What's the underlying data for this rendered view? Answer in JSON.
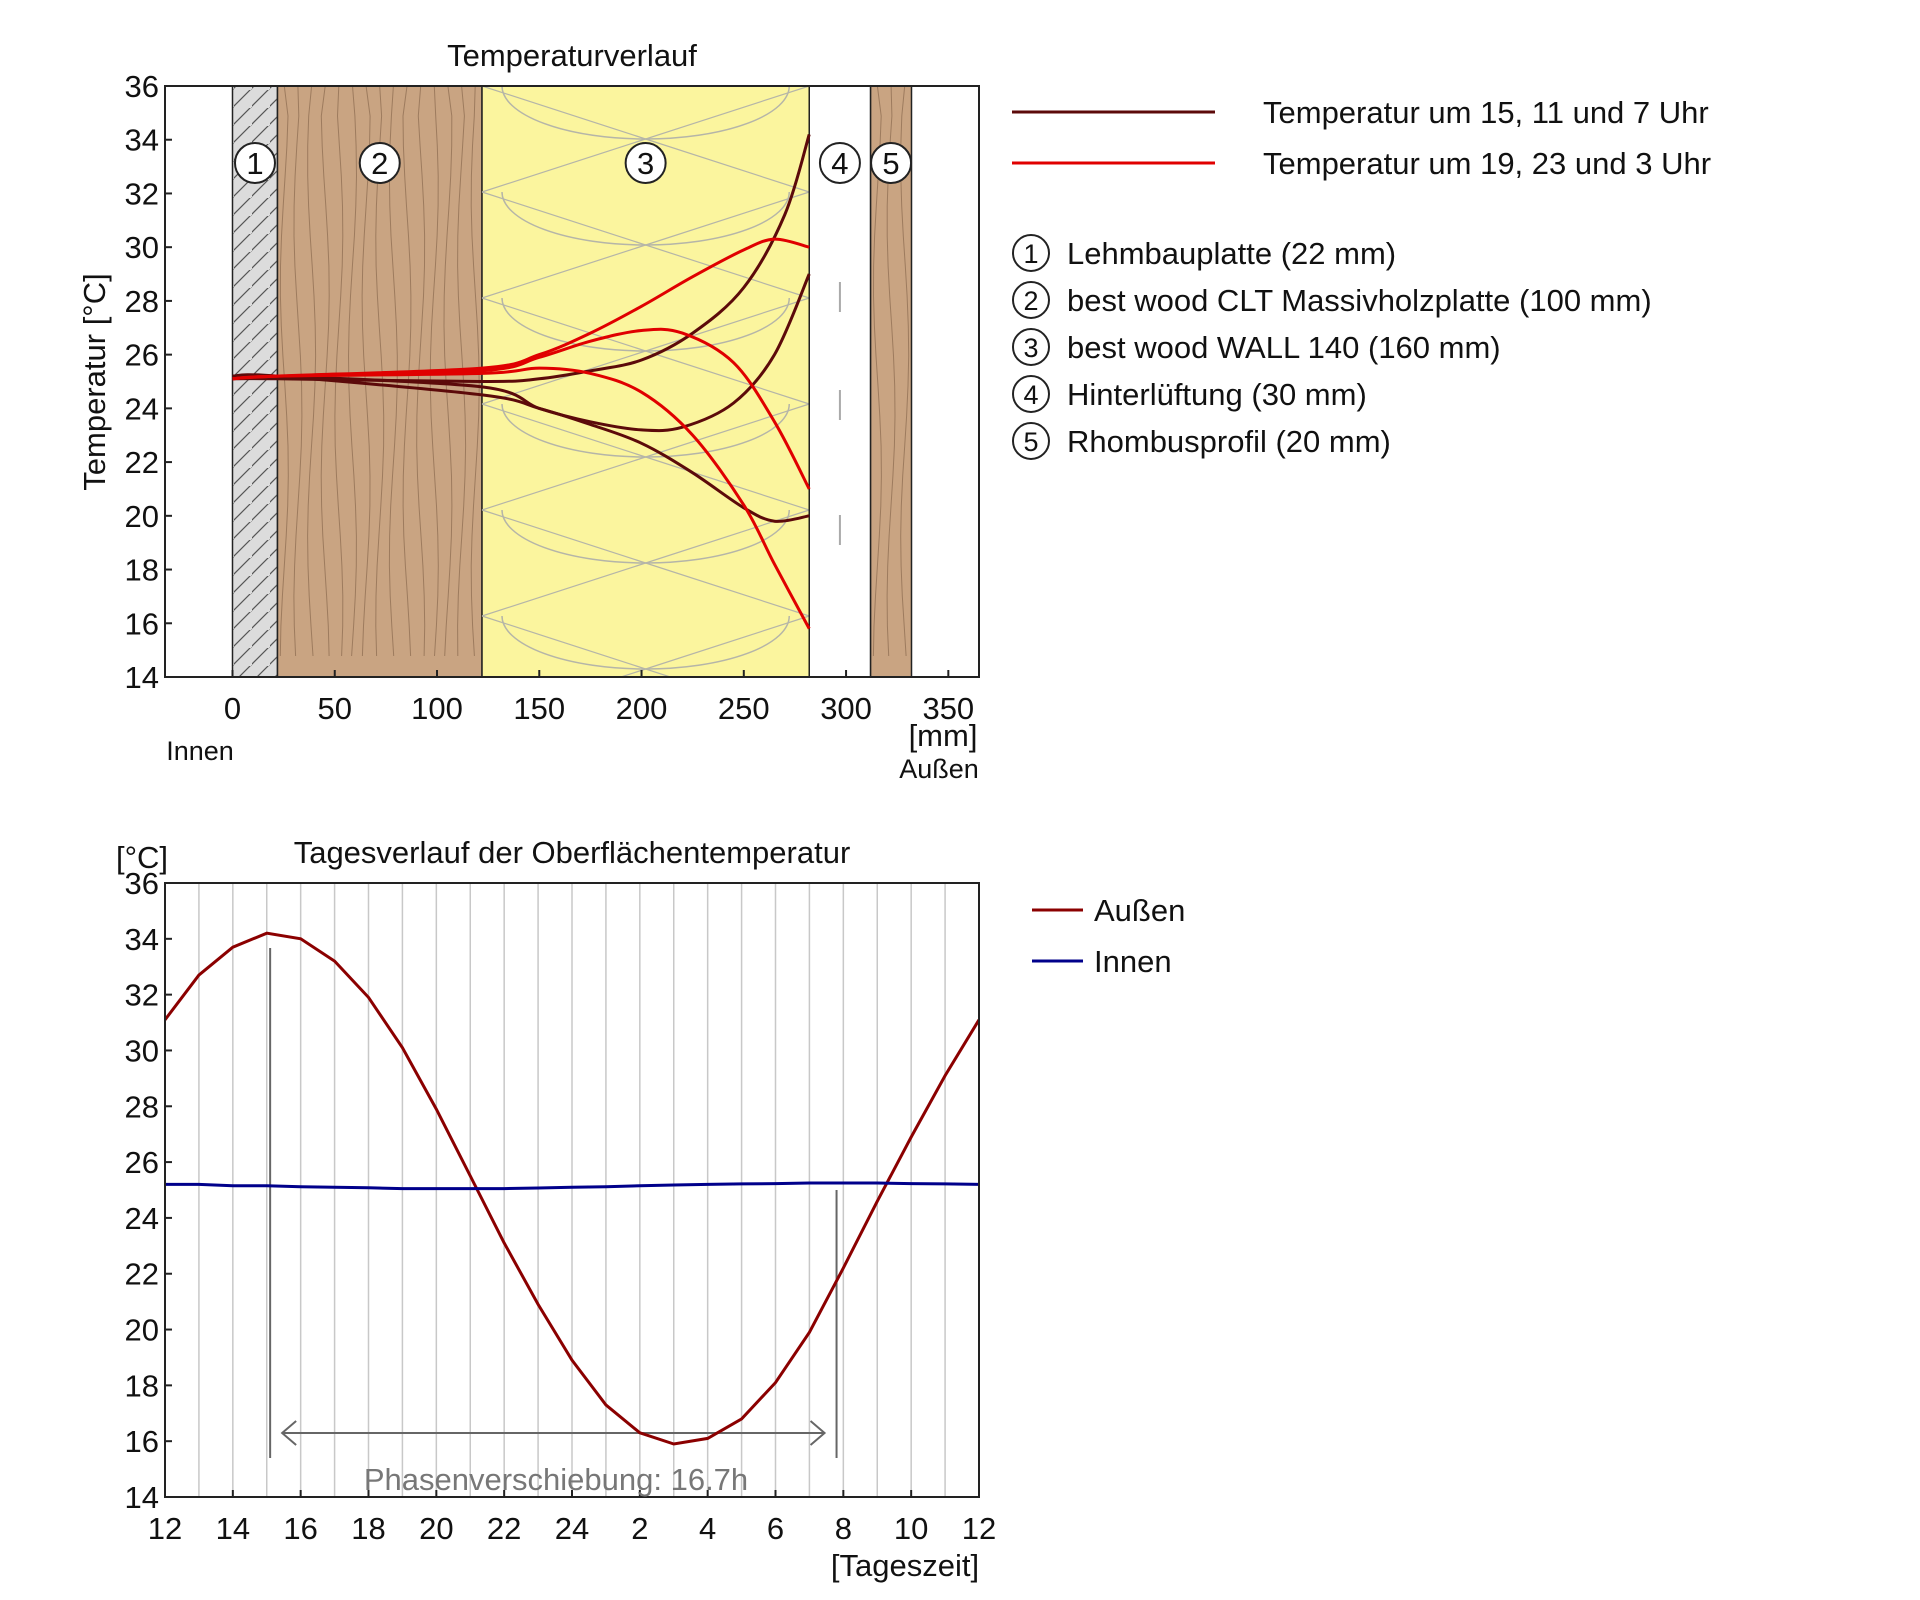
{
  "chart_data": [
    {
      "type": "line",
      "title": "Temperaturverlauf",
      "ylabel": "Temperatur [°C]",
      "xlabel": "[mm]",
      "x_inner_label": "Innen",
      "x_outer_label": "Außen",
      "xlim": [
        -33,
        365
      ],
      "ylim": [
        14,
        36
      ],
      "x_ticks": [
        "0",
        "50",
        "100",
        "150",
        "200",
        "250",
        "300",
        "350"
      ],
      "y_ticks": [
        "14",
        "16",
        "18",
        "20",
        "22",
        "24",
        "26",
        "28",
        "30",
        "32",
        "34",
        "36"
      ],
      "layers": [
        {
          "num": "1",
          "label": "Lehmbauplatte (22 mm)",
          "from": 0,
          "to": 22,
          "color": "#dcdcdc"
        },
        {
          "num": "2",
          "label": "best wood CLT Massivholzplatte (100 mm)",
          "from": 22,
          "to": 122,
          "color": "#c9a482"
        },
        {
          "num": "3",
          "label": "best wood WALL 140 (160 mm)",
          "from": 122,
          "to": 282,
          "color": "#fbf59e"
        },
        {
          "num": "4",
          "label": "Hinterlüftung (30 mm)",
          "from": 282,
          "to": 312,
          "color": "#ffffff"
        },
        {
          "num": "5",
          "label": "Rhombusprofil (20 mm)",
          "from": 312,
          "to": 332,
          "color": "#c9a482"
        }
      ],
      "legend": [
        {
          "label": "Temperatur um 15, 11 und 7 Uhr",
          "color": "#5c0a0a"
        },
        {
          "label": "Temperatur um 19, 23 und 3 Uhr",
          "color": "#e00000"
        }
      ],
      "series": [
        {
          "group": 0,
          "x": [
            0,
            22,
            122,
            150,
            175,
            200,
            225,
            250,
            270,
            282
          ],
          "y": [
            25.1,
            25.1,
            25.0,
            25.1,
            25.4,
            25.8,
            26.8,
            28.5,
            31.2,
            34.2
          ]
        },
        {
          "group": 0,
          "x": [
            0,
            22,
            122,
            150,
            175,
            200,
            220,
            245,
            265,
            282
          ],
          "y": [
            25.2,
            25.2,
            24.8,
            24.0,
            23.5,
            23.2,
            23.3,
            24.2,
            26.0,
            29.0
          ]
        },
        {
          "group": 0,
          "x": [
            0,
            22,
            122,
            150,
            175,
            200,
            225,
            250,
            265,
            282
          ],
          "y": [
            25.2,
            25.2,
            24.5,
            24.0,
            23.4,
            22.7,
            21.6,
            20.3,
            19.8,
            20.0
          ]
        },
        {
          "group": 1,
          "x": [
            0,
            22,
            122,
            150,
            175,
            200,
            225,
            250,
            265,
            282
          ],
          "y": [
            25.1,
            25.2,
            25.5,
            26.0,
            26.8,
            27.8,
            28.9,
            29.9,
            30.3,
            30.0
          ]
        },
        {
          "group": 1,
          "x": [
            0,
            22,
            122,
            150,
            175,
            200,
            220,
            245,
            265,
            282
          ],
          "y": [
            25.1,
            25.2,
            25.4,
            25.9,
            26.5,
            26.9,
            26.8,
            25.7,
            23.5,
            21.0
          ]
        },
        {
          "group": 1,
          "x": [
            0,
            22,
            122,
            150,
            175,
            200,
            225,
            250,
            265,
            282
          ],
          "y": [
            25.1,
            25.2,
            25.3,
            25.5,
            25.3,
            24.6,
            23.0,
            20.4,
            18.2,
            15.8
          ]
        }
      ]
    },
    {
      "type": "line",
      "title": "Tagesverlauf der Oberflächentemperatur",
      "ylabel": "[°C]",
      "xlabel": "[Tageszeit]",
      "xlim": [
        0,
        24
      ],
      "ylim": [
        14,
        36
      ],
      "x_ticks": [
        "12",
        "14",
        "16",
        "18",
        "20",
        "22",
        "24",
        "2",
        "4",
        "6",
        "8",
        "10",
        "12"
      ],
      "y_ticks": [
        "14",
        "16",
        "18",
        "20",
        "22",
        "24",
        "26",
        "28",
        "30",
        "32",
        "34",
        "36"
      ],
      "annotation": "Phasenverschiebung: 16.7h",
      "phase_shift": {
        "from": 3.1,
        "to": 19.8
      },
      "series": [
        {
          "name": "Außen",
          "color": "#8b0000",
          "y": [
            31.1,
            32.7,
            33.7,
            34.2,
            34.0,
            33.2,
            31.9,
            30.1,
            27.9,
            25.5,
            23.1,
            20.9,
            18.9,
            17.3,
            16.3,
            15.9,
            16.1,
            16.8,
            18.1,
            19.9,
            22.2,
            24.6,
            26.9,
            29.1,
            31.1
          ]
        },
        {
          "name": "Innen",
          "color": "#00008b",
          "y": [
            25.2,
            25.2,
            25.15,
            25.15,
            25.12,
            25.1,
            25.08,
            25.05,
            25.05,
            25.05,
            25.05,
            25.07,
            25.1,
            25.12,
            25.15,
            25.18,
            25.2,
            25.22,
            25.23,
            25.25,
            25.25,
            25.25,
            25.23,
            25.22,
            25.2
          ]
        }
      ]
    }
  ]
}
